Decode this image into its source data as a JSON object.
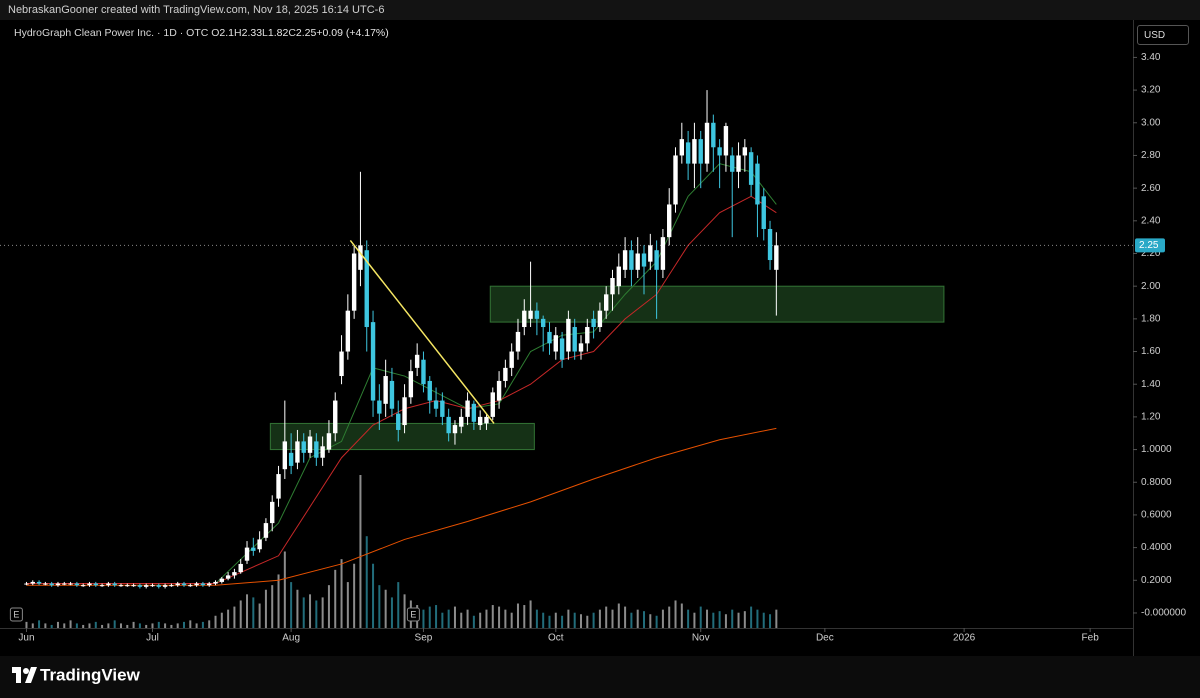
{
  "attribution": "NebraskanGooner created with TradingView.com, Nov 18, 2025 16:14 UTC-6",
  "brand": "TradingView",
  "chart_data": {
    "type": "candlestick",
    "symbol": "HydroGraph Clean Power Inc. · 1D · OTC",
    "ohlc_labels": [
      "O",
      "H",
      "L",
      "C"
    ],
    "change": "+0.09 (+4.17%)",
    "currency": "USD",
    "up_color": "#ffffff",
    "down_color": "#3ec6e0",
    "xlim": [
      -4.2,
      175.6
    ],
    "xticks": [
      {
        "value": 0,
        "label": "Jun"
      },
      {
        "value": 20,
        "label": "Jul"
      },
      {
        "value": 42,
        "label": "Aug"
      },
      {
        "value": 63,
        "label": "Sep"
      },
      {
        "value": 84,
        "label": "Oct"
      },
      {
        "value": 107,
        "label": "Nov"
      },
      {
        "value": 126.7,
        "label": "Dec"
      },
      {
        "value": 148.8,
        "label": "2026"
      },
      {
        "value": 168.8,
        "label": "Feb"
      }
    ],
    "ylim": [
      -0.092,
      3.629
    ],
    "yticks": [
      {
        "value": 3.4,
        "label": "3.40"
      },
      {
        "value": 3.2,
        "label": "3.20"
      },
      {
        "value": 3.0,
        "label": "3.00"
      },
      {
        "value": 2.8,
        "label": "2.80"
      },
      {
        "value": 2.6,
        "label": "2.60"
      },
      {
        "value": 2.4,
        "label": "2.40"
      },
      {
        "value": 2.2,
        "label": "2.20"
      },
      {
        "value": 2.0,
        "label": "2.00"
      },
      {
        "value": 1.8,
        "label": "1.80"
      },
      {
        "value": 1.6,
        "label": "1.60"
      },
      {
        "value": 1.4,
        "label": "1.40"
      },
      {
        "value": 1.2,
        "label": "1.20"
      },
      {
        "value": 1.0,
        "label": "1.0000"
      },
      {
        "value": 0.8,
        "label": "0.8000"
      },
      {
        "value": 0.6,
        "label": "0.6000"
      },
      {
        "value": 0.4,
        "label": "0.4000"
      },
      {
        "value": 0.2,
        "label": "0.2000"
      },
      {
        "value": 0,
        "label": "-0.000000"
      }
    ],
    "open": [
      0.18,
      0.18,
      0.19,
      0.18,
      0.18,
      0.17,
      0.18,
      0.18,
      0.18,
      0.17,
      0.17,
      0.18,
      0.17,
      0.17,
      0.18,
      0.17,
      0.17,
      0.17,
      0.17,
      0.16,
      0.17,
      0.17,
      0.16,
      0.17,
      0.17,
      0.18,
      0.17,
      0.17,
      0.18,
      0.17,
      0.18,
      0.19,
      0.21,
      0.23,
      0.25,
      0.32,
      0.4,
      0.39,
      0.46,
      0.55,
      0.7,
      0.88,
      0.98,
      0.92,
      1.05,
      0.98,
      1.05,
      0.95,
      1.0,
      1.1,
      1.45,
      1.6,
      1.85,
      2.1,
      2.22,
      1.78,
      1.3,
      1.28,
      1.42,
      1.22,
      1.15,
      1.32,
      1.5,
      1.55,
      1.42,
      1.3,
      1.3,
      1.2,
      1.1,
      1.14,
      1.2,
      1.28,
      1.15,
      1.16,
      1.2,
      1.3,
      1.42,
      1.5,
      1.6,
      1.75,
      1.8,
      1.85,
      1.8,
      1.72,
      1.6,
      1.68,
      1.6,
      1.75,
      1.6,
      1.65,
      1.8,
      1.75,
      1.85,
      1.95,
      2.0,
      2.1,
      2.22,
      2.1,
      2.2,
      2.15,
      2.22,
      2.1,
      2.3,
      2.5,
      2.8,
      2.88,
      2.75,
      2.9,
      2.75,
      3.0,
      2.85,
      2.8,
      2.8,
      2.7,
      2.8,
      2.82,
      2.75,
      2.55,
      2.35,
      2.1
    ],
    "high": [
      0.19,
      0.2,
      0.2,
      0.19,
      0.19,
      0.19,
      0.19,
      0.19,
      0.19,
      0.18,
      0.19,
      0.19,
      0.18,
      0.19,
      0.19,
      0.18,
      0.18,
      0.18,
      0.18,
      0.18,
      0.18,
      0.18,
      0.18,
      0.18,
      0.19,
      0.19,
      0.18,
      0.19,
      0.19,
      0.19,
      0.2,
      0.22,
      0.25,
      0.27,
      0.33,
      0.44,
      0.46,
      0.5,
      0.58,
      0.72,
      0.9,
      1.3,
      1.1,
      1.12,
      1.1,
      1.12,
      1.1,
      1.08,
      1.18,
      1.35,
      1.7,
      1.95,
      2.25,
      2.7,
      2.28,
      1.85,
      1.4,
      1.55,
      1.5,
      1.3,
      1.4,
      1.55,
      1.65,
      1.6,
      1.45,
      1.38,
      1.35,
      1.25,
      1.18,
      1.25,
      1.35,
      1.3,
      1.24,
      1.22,
      1.38,
      1.48,
      1.55,
      1.65,
      1.8,
      1.92,
      2.15,
      1.9,
      1.82,
      1.78,
      1.75,
      1.72,
      1.85,
      1.8,
      1.7,
      1.8,
      1.85,
      1.9,
      2.0,
      2.1,
      2.2,
      2.3,
      2.28,
      2.3,
      2.25,
      2.32,
      2.28,
      2.35,
      2.6,
      2.85,
      3.0,
      2.95,
      3.0,
      2.95,
      3.2,
      3.05,
      2.9,
      3.0,
      2.85,
      2.88,
      2.9,
      2.85,
      2.8,
      2.6,
      2.4,
      2.33
    ],
    "low": [
      0.17,
      0.17,
      0.17,
      0.17,
      0.16,
      0.16,
      0.17,
      0.17,
      0.16,
      0.16,
      0.16,
      0.16,
      0.16,
      0.16,
      0.16,
      0.16,
      0.16,
      0.16,
      0.15,
      0.15,
      0.16,
      0.15,
      0.15,
      0.16,
      0.16,
      0.16,
      0.16,
      0.16,
      0.16,
      0.16,
      0.17,
      0.18,
      0.2,
      0.21,
      0.24,
      0.3,
      0.35,
      0.37,
      0.44,
      0.5,
      0.65,
      0.82,
      0.85,
      0.88,
      0.92,
      0.95,
      0.9,
      0.9,
      0.98,
      1.05,
      1.4,
      1.55,
      1.8,
      2.0,
      1.6,
      1.2,
      1.12,
      1.2,
      1.2,
      1.05,
      1.1,
      1.28,
      1.45,
      1.35,
      1.22,
      1.2,
      1.15,
      1.05,
      1.03,
      1.1,
      1.15,
      1.12,
      1.12,
      1.12,
      1.18,
      1.25,
      1.38,
      1.45,
      1.55,
      1.7,
      1.75,
      1.7,
      1.6,
      1.58,
      1.55,
      1.5,
      1.55,
      1.55,
      1.55,
      1.6,
      1.68,
      1.72,
      1.8,
      1.85,
      1.95,
      2.05,
      2.0,
      2.05,
      1.95,
      2.1,
      1.8,
      2.05,
      2.25,
      2.45,
      2.75,
      2.65,
      2.6,
      2.6,
      2.7,
      2.7,
      2.6,
      2.7,
      2.3,
      2.6,
      2.7,
      2.55,
      2.3,
      2.28,
      2.1,
      1.82
    ],
    "close": [
      0.18,
      0.19,
      0.18,
      0.18,
      0.17,
      0.18,
      0.18,
      0.18,
      0.17,
      0.17,
      0.18,
      0.17,
      0.17,
      0.18,
      0.17,
      0.17,
      0.17,
      0.17,
      0.16,
      0.17,
      0.17,
      0.16,
      0.17,
      0.17,
      0.18,
      0.17,
      0.17,
      0.18,
      0.17,
      0.18,
      0.19,
      0.21,
      0.23,
      0.25,
      0.3,
      0.4,
      0.38,
      0.45,
      0.55,
      0.68,
      0.85,
      1.05,
      0.9,
      1.05,
      0.98,
      1.08,
      0.95,
      1.02,
      1.1,
      1.3,
      1.6,
      1.85,
      2.2,
      2.25,
      1.75,
      1.3,
      1.22,
      1.45,
      1.25,
      1.12,
      1.32,
      1.48,
      1.58,
      1.4,
      1.3,
      1.25,
      1.2,
      1.1,
      1.15,
      1.2,
      1.3,
      1.17,
      1.2,
      1.2,
      1.35,
      1.42,
      1.5,
      1.6,
      1.72,
      1.85,
      1.85,
      1.8,
      1.75,
      1.65,
      1.7,
      1.55,
      1.8,
      1.6,
      1.65,
      1.75,
      1.75,
      1.85,
      1.95,
      2.05,
      2.12,
      2.22,
      2.1,
      2.2,
      2.12,
      2.25,
      2.1,
      2.3,
      2.5,
      2.8,
      2.9,
      2.75,
      2.9,
      2.75,
      3.0,
      2.85,
      2.8,
      2.98,
      2.7,
      2.8,
      2.85,
      2.62,
      2.5,
      2.35,
      2.16,
      2.25
    ],
    "volume_ylim": [
      0,
      100
    ],
    "volume": [
      4,
      3,
      5,
      3,
      2,
      4,
      3,
      5,
      3,
      2,
      3,
      4,
      2,
      3,
      5,
      3,
      2,
      4,
      3,
      2,
      3,
      4,
      3,
      2,
      3,
      4,
      5,
      3,
      4,
      5,
      8,
      10,
      12,
      14,
      18,
      22,
      20,
      16,
      25,
      28,
      35,
      50,
      30,
      25,
      20,
      22,
      18,
      20,
      28,
      38,
      45,
      30,
      42,
      100,
      60,
      42,
      28,
      25,
      20,
      30,
      22,
      18,
      15,
      12,
      14,
      15,
      10,
      12,
      14,
      10,
      12,
      8,
      10,
      12,
      15,
      14,
      12,
      10,
      16,
      15,
      18,
      12,
      10,
      8,
      10,
      8,
      12,
      10,
      9,
      8,
      10,
      12,
      14,
      12,
      16,
      14,
      10,
      12,
      11,
      9,
      8,
      12,
      14,
      18,
      16,
      12,
      10,
      14,
      12,
      10,
      11,
      9,
      12,
      10,
      11,
      14,
      12,
      10,
      9,
      12
    ],
    "moving_averages": [
      {
        "color": "#2e7d32",
        "x": [
          0,
          30,
          40,
          45,
          50,
          55,
          60,
          65,
          70,
          75,
          80,
          85,
          90,
          95,
          100,
          105,
          110,
          115,
          119
        ],
        "values": [
          0.18,
          0.18,
          0.55,
          0.95,
          1.05,
          1.5,
          1.45,
          1.35,
          1.25,
          1.28,
          1.6,
          1.7,
          1.72,
          1.95,
          2.15,
          2.55,
          2.75,
          2.7,
          2.5
        ]
      },
      {
        "color": "#c62828",
        "x": [
          0,
          30,
          40,
          45,
          50,
          55,
          60,
          65,
          70,
          75,
          80,
          85,
          90,
          95,
          100,
          105,
          110,
          115,
          119
        ],
        "values": [
          0.18,
          0.18,
          0.35,
          0.65,
          0.95,
          1.15,
          1.25,
          1.3,
          1.25,
          1.3,
          1.4,
          1.55,
          1.6,
          1.8,
          1.95,
          2.25,
          2.45,
          2.55,
          2.45
        ]
      },
      {
        "color": "#e65100",
        "x": [
          0,
          30,
          40,
          50,
          60,
          70,
          80,
          90,
          100,
          110,
          119
        ],
        "values": [
          0.17,
          0.17,
          0.2,
          0.3,
          0.45,
          0.56,
          0.68,
          0.82,
          0.95,
          1.06,
          1.13
        ]
      }
    ],
    "zones": [
      {
        "x": [
          38.7,
          80.6
        ],
        "y": [
          1.0,
          1.16
        ]
      },
      {
        "x": [
          73.6,
          145.6
        ],
        "y": [
          1.78,
          2.0
        ]
      }
    ],
    "zone_color": "#4caf50",
    "trendline": {
      "x": [
        51.4,
        74.2
      ],
      "y": [
        2.28,
        1.16
      ],
      "color": "#f5e663"
    },
    "events": [
      {
        "label": "E",
        "index": -1.6
      },
      {
        "label": "E",
        "index": 61.4
      }
    ]
  }
}
